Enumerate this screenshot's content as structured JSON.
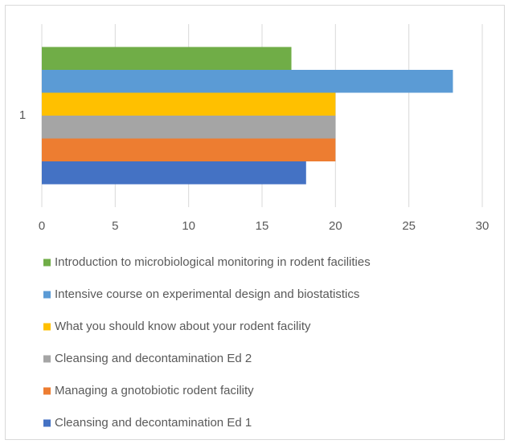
{
  "chart_data": {
    "type": "bar",
    "orientation": "horizontal",
    "categories": [
      "1"
    ],
    "series": [
      {
        "name": "Introduction to microbiological monitoring in rodent facilities",
        "color": "#70ad47",
        "values": [
          17
        ]
      },
      {
        "name": "Intensive course on experimental design and biostatistics",
        "color": "#5b9bd5",
        "values": [
          28
        ]
      },
      {
        "name": "What you should know about your rodent facility",
        "color": "#ffc000",
        "values": [
          20
        ]
      },
      {
        "name": "Cleansing and decontamination Ed 2",
        "color": "#a5a5a5",
        "values": [
          20
        ]
      },
      {
        "name": "Managing a gnotobiotic rodent facility",
        "color": "#ed7d31",
        "values": [
          20
        ]
      },
      {
        "name": "Cleansing and decontamination Ed 1",
        "color": "#4472c4",
        "values": [
          18
        ]
      }
    ],
    "xlim": [
      0,
      30
    ],
    "xticks": [
      0,
      5,
      10,
      15,
      20,
      25,
      30
    ],
    "grid": true,
    "legend": "bottom"
  }
}
